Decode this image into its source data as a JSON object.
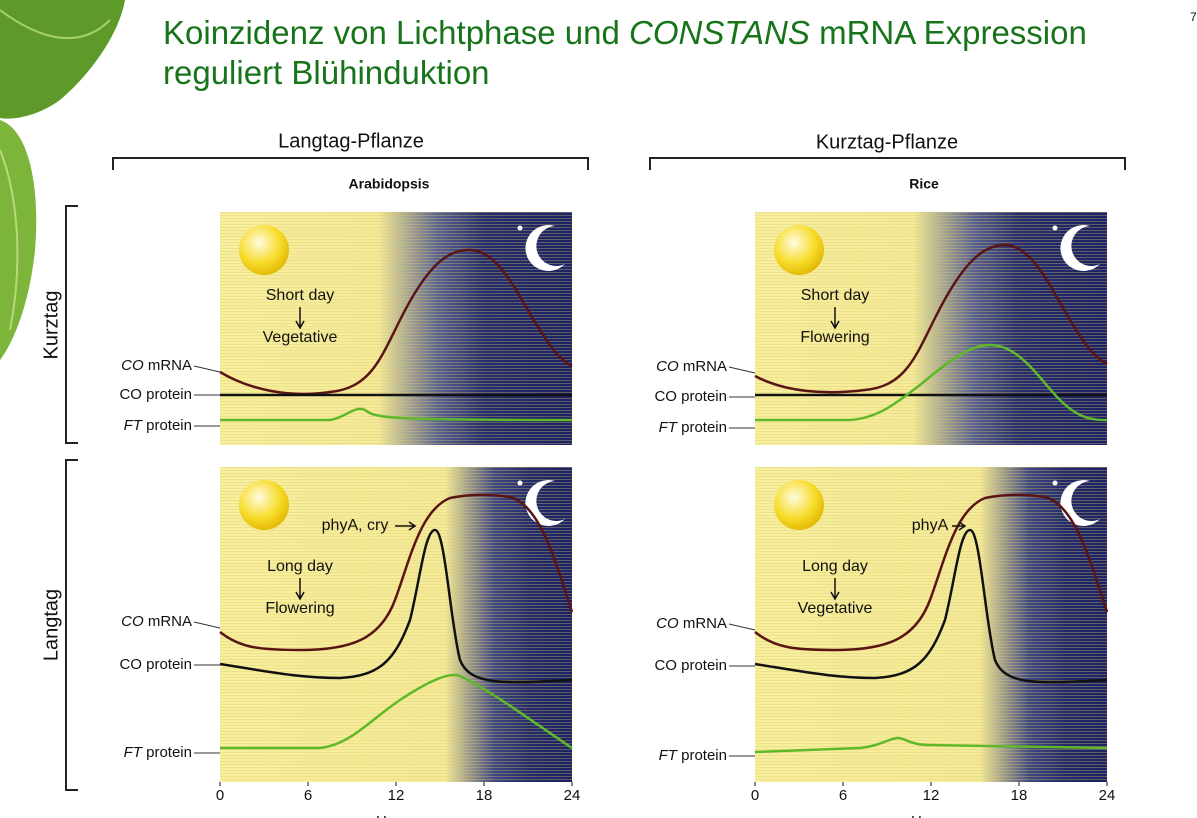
{
  "title": {
    "line1": [
      "Koinzidenz von Lichtphase und ",
      "CONSTANS",
      " mRNA Expression"
    ],
    "line2": "reguliert Blühinduktion"
  },
  "page_number": "7",
  "columns": [
    {
      "header": "Langtag-Pflanze",
      "species": "Arabidopsis"
    },
    {
      "header": "Kurztag-Pflanze",
      "species": "Rice"
    }
  ],
  "rows": [
    "Kurztag",
    "Langtag"
  ],
  "curve_labels": {
    "co_mrna": [
      "CO",
      " mRNA"
    ],
    "co_protein": "CO protein",
    "ft_protein": [
      "FT",
      " protein"
    ]
  },
  "panels": [
    {
      "day": "Short day",
      "outcome": "Vegetative"
    },
    {
      "day": "Short day",
      "outcome": "Flowering"
    },
    {
      "day": "Long day",
      "outcome": "Flowering",
      "photoreceptor": "phyA, cry"
    },
    {
      "day": "Long day",
      "outcome": "Vegetative",
      "photoreceptor": "phyA"
    }
  ],
  "x_ticks": [
    "0",
    "6",
    "12",
    "18",
    "24"
  ],
  "x_label": "Hours"
}
